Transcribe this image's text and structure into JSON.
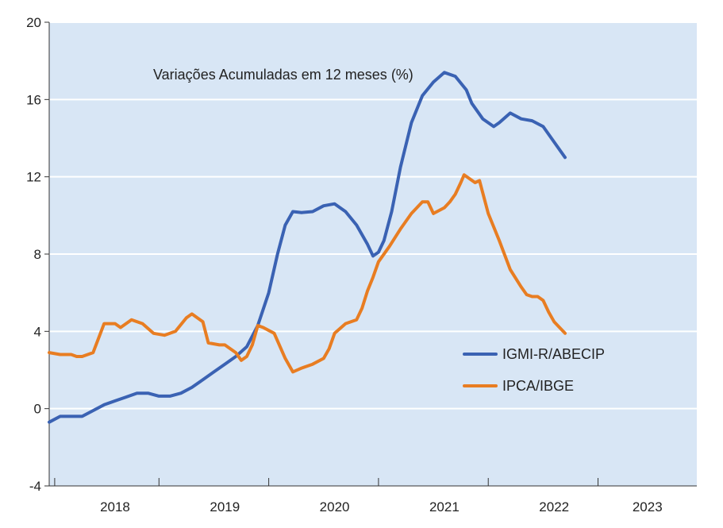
{
  "chart_data": {
    "type": "line",
    "title": "",
    "annotation": "Variações Acumuladas em 12 meses (%)",
    "xlabel": "",
    "ylabel": "",
    "ylim": [
      -4,
      20
    ],
    "yticks": [
      -4,
      0,
      4,
      8,
      12,
      16,
      20
    ],
    "xlim": [
      2017.5,
      2023.4
    ],
    "xtick_labels": [
      {
        "label": "2018",
        "x": 2018.1
      },
      {
        "label": "2019",
        "x": 2019.1
      },
      {
        "label": "2020",
        "x": 2020.1
      },
      {
        "label": "2021",
        "x": 2021.1
      },
      {
        "label": "2022",
        "x": 2022.1
      },
      {
        "label": "2023",
        "x": 2022.95
      }
    ],
    "year_boundaries": [
      2018.5,
      2019.5,
      2020.5,
      2021.5,
      2022.5
    ],
    "grid": true,
    "legend": "center-right",
    "background": "#d8e6f5",
    "series": [
      {
        "name": "IGMI-R/ABECIP",
        "color": "#3a62b3",
        "points": [
          [
            2017.5,
            -0.7
          ],
          [
            2017.6,
            -0.4
          ],
          [
            2017.7,
            -0.4
          ],
          [
            2017.8,
            -0.4
          ],
          [
            2017.9,
            -0.1
          ],
          [
            2018.0,
            0.2
          ],
          [
            2018.1,
            0.4
          ],
          [
            2018.2,
            0.6
          ],
          [
            2018.3,
            0.8
          ],
          [
            2018.4,
            0.8
          ],
          [
            2018.5,
            0.65
          ],
          [
            2018.6,
            0.65
          ],
          [
            2018.7,
            0.8
          ],
          [
            2018.8,
            1.1
          ],
          [
            2018.9,
            1.5
          ],
          [
            2019.0,
            1.9
          ],
          [
            2019.1,
            2.3
          ],
          [
            2019.2,
            2.7
          ],
          [
            2019.3,
            3.2
          ],
          [
            2019.4,
            4.3
          ],
          [
            2019.5,
            6.0
          ],
          [
            2019.58,
            8.0
          ],
          [
            2019.65,
            9.5
          ],
          [
            2019.72,
            10.2
          ],
          [
            2019.8,
            10.15
          ],
          [
            2019.9,
            10.2
          ],
          [
            2020.0,
            10.5
          ],
          [
            2020.1,
            10.6
          ],
          [
            2020.2,
            10.2
          ],
          [
            2020.3,
            9.5
          ],
          [
            2020.4,
            8.5
          ],
          [
            2020.45,
            7.9
          ],
          [
            2020.5,
            8.1
          ],
          [
            2020.55,
            8.7
          ],
          [
            2020.62,
            10.2
          ],
          [
            2020.7,
            12.5
          ],
          [
            2020.8,
            14.8
          ],
          [
            2020.9,
            16.2
          ],
          [
            2021.0,
            16.9
          ],
          [
            2021.1,
            17.4
          ],
          [
            2021.2,
            17.2
          ],
          [
            2021.3,
            16.5
          ],
          [
            2021.35,
            15.8
          ],
          [
            2021.45,
            15.0
          ],
          [
            2021.55,
            14.6
          ],
          [
            2021.6,
            14.8
          ],
          [
            2021.7,
            15.3
          ],
          [
            2021.8,
            15.0
          ],
          [
            2021.9,
            14.9
          ],
          [
            2022.0,
            14.6
          ],
          [
            2022.1,
            13.8
          ],
          [
            2022.2,
            13.0
          ]
        ]
      },
      {
        "name": "IPCA/IBGE",
        "color": "#e87d22",
        "points": [
          [
            2017.5,
            2.9
          ],
          [
            2017.6,
            2.8
          ],
          [
            2017.7,
            2.8
          ],
          [
            2017.75,
            2.7
          ],
          [
            2017.8,
            2.7
          ],
          [
            2017.9,
            2.9
          ],
          [
            2018.0,
            4.4
          ],
          [
            2018.1,
            4.4
          ],
          [
            2018.15,
            4.2
          ],
          [
            2018.25,
            4.6
          ],
          [
            2018.35,
            4.4
          ],
          [
            2018.45,
            3.9
          ],
          [
            2018.55,
            3.8
          ],
          [
            2018.65,
            4.0
          ],
          [
            2018.75,
            4.7
          ],
          [
            2018.8,
            4.9
          ],
          [
            2018.9,
            4.5
          ],
          [
            2018.95,
            3.4
          ],
          [
            2019.05,
            3.3
          ],
          [
            2019.1,
            3.3
          ],
          [
            2019.2,
            2.9
          ],
          [
            2019.25,
            2.5
          ],
          [
            2019.3,
            2.7
          ],
          [
            2019.35,
            3.3
          ],
          [
            2019.4,
            4.3
          ],
          [
            2019.45,
            4.2
          ],
          [
            2019.55,
            3.9
          ],
          [
            2019.65,
            2.6
          ],
          [
            2019.72,
            1.9
          ],
          [
            2019.8,
            2.1
          ],
          [
            2019.9,
            2.3
          ],
          [
            2020.0,
            2.6
          ],
          [
            2020.05,
            3.1
          ],
          [
            2020.1,
            3.9
          ],
          [
            2020.2,
            4.4
          ],
          [
            2020.3,
            4.6
          ],
          [
            2020.35,
            5.2
          ],
          [
            2020.4,
            6.1
          ],
          [
            2020.45,
            6.8
          ],
          [
            2020.5,
            7.6
          ],
          [
            2020.6,
            8.4
          ],
          [
            2020.7,
            9.3
          ],
          [
            2020.8,
            10.1
          ],
          [
            2020.9,
            10.7
          ],
          [
            2020.95,
            10.7
          ],
          [
            2021.0,
            10.1
          ],
          [
            2021.1,
            10.4
          ],
          [
            2021.15,
            10.7
          ],
          [
            2021.2,
            11.1
          ],
          [
            2021.25,
            11.7
          ],
          [
            2021.28,
            12.1
          ],
          [
            2021.33,
            11.9
          ],
          [
            2021.38,
            11.7
          ],
          [
            2021.42,
            11.8
          ],
          [
            2021.5,
            10.1
          ],
          [
            2021.6,
            8.7
          ],
          [
            2021.7,
            7.2
          ],
          [
            2021.8,
            6.3
          ],
          [
            2021.85,
            5.9
          ],
          [
            2021.9,
            5.8
          ],
          [
            2021.95,
            5.8
          ],
          [
            2022.0,
            5.6
          ],
          [
            2022.05,
            5.0
          ],
          [
            2022.1,
            4.5
          ],
          [
            2022.15,
            4.2
          ],
          [
            2022.2,
            3.9
          ]
        ]
      }
    ]
  }
}
